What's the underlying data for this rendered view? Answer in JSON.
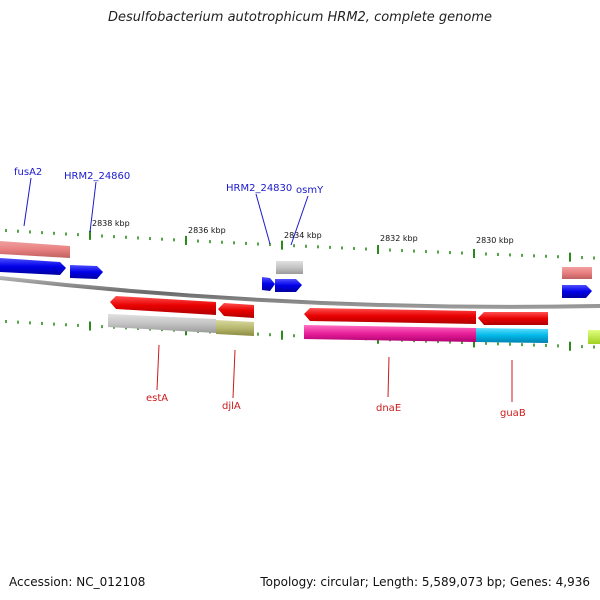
{
  "title": "Desulfobacterium autotrophicum HRM2, complete genome",
  "accession": "Accession: NC_012108",
  "summary": "Topology: circular; Length: 5,589,073 bp; Genes: 4,936",
  "ticks": [
    "2838 kbp",
    "2836 kbp",
    "2834 kbp",
    "2832 kbp",
    "2830 kbp"
  ],
  "genes_forward": [
    "fusA2",
    "HRM2_24860",
    "HRM2_24830",
    "osmY"
  ],
  "genes_reverse": [
    "estA",
    "djlA",
    "dnaE",
    "guaB"
  ],
  "colors": {
    "forward_cds": "#1010e8",
    "reverse_cds": "#e81010",
    "tick": "#2a8a1a",
    "backbone": "#8a8a8a"
  }
}
